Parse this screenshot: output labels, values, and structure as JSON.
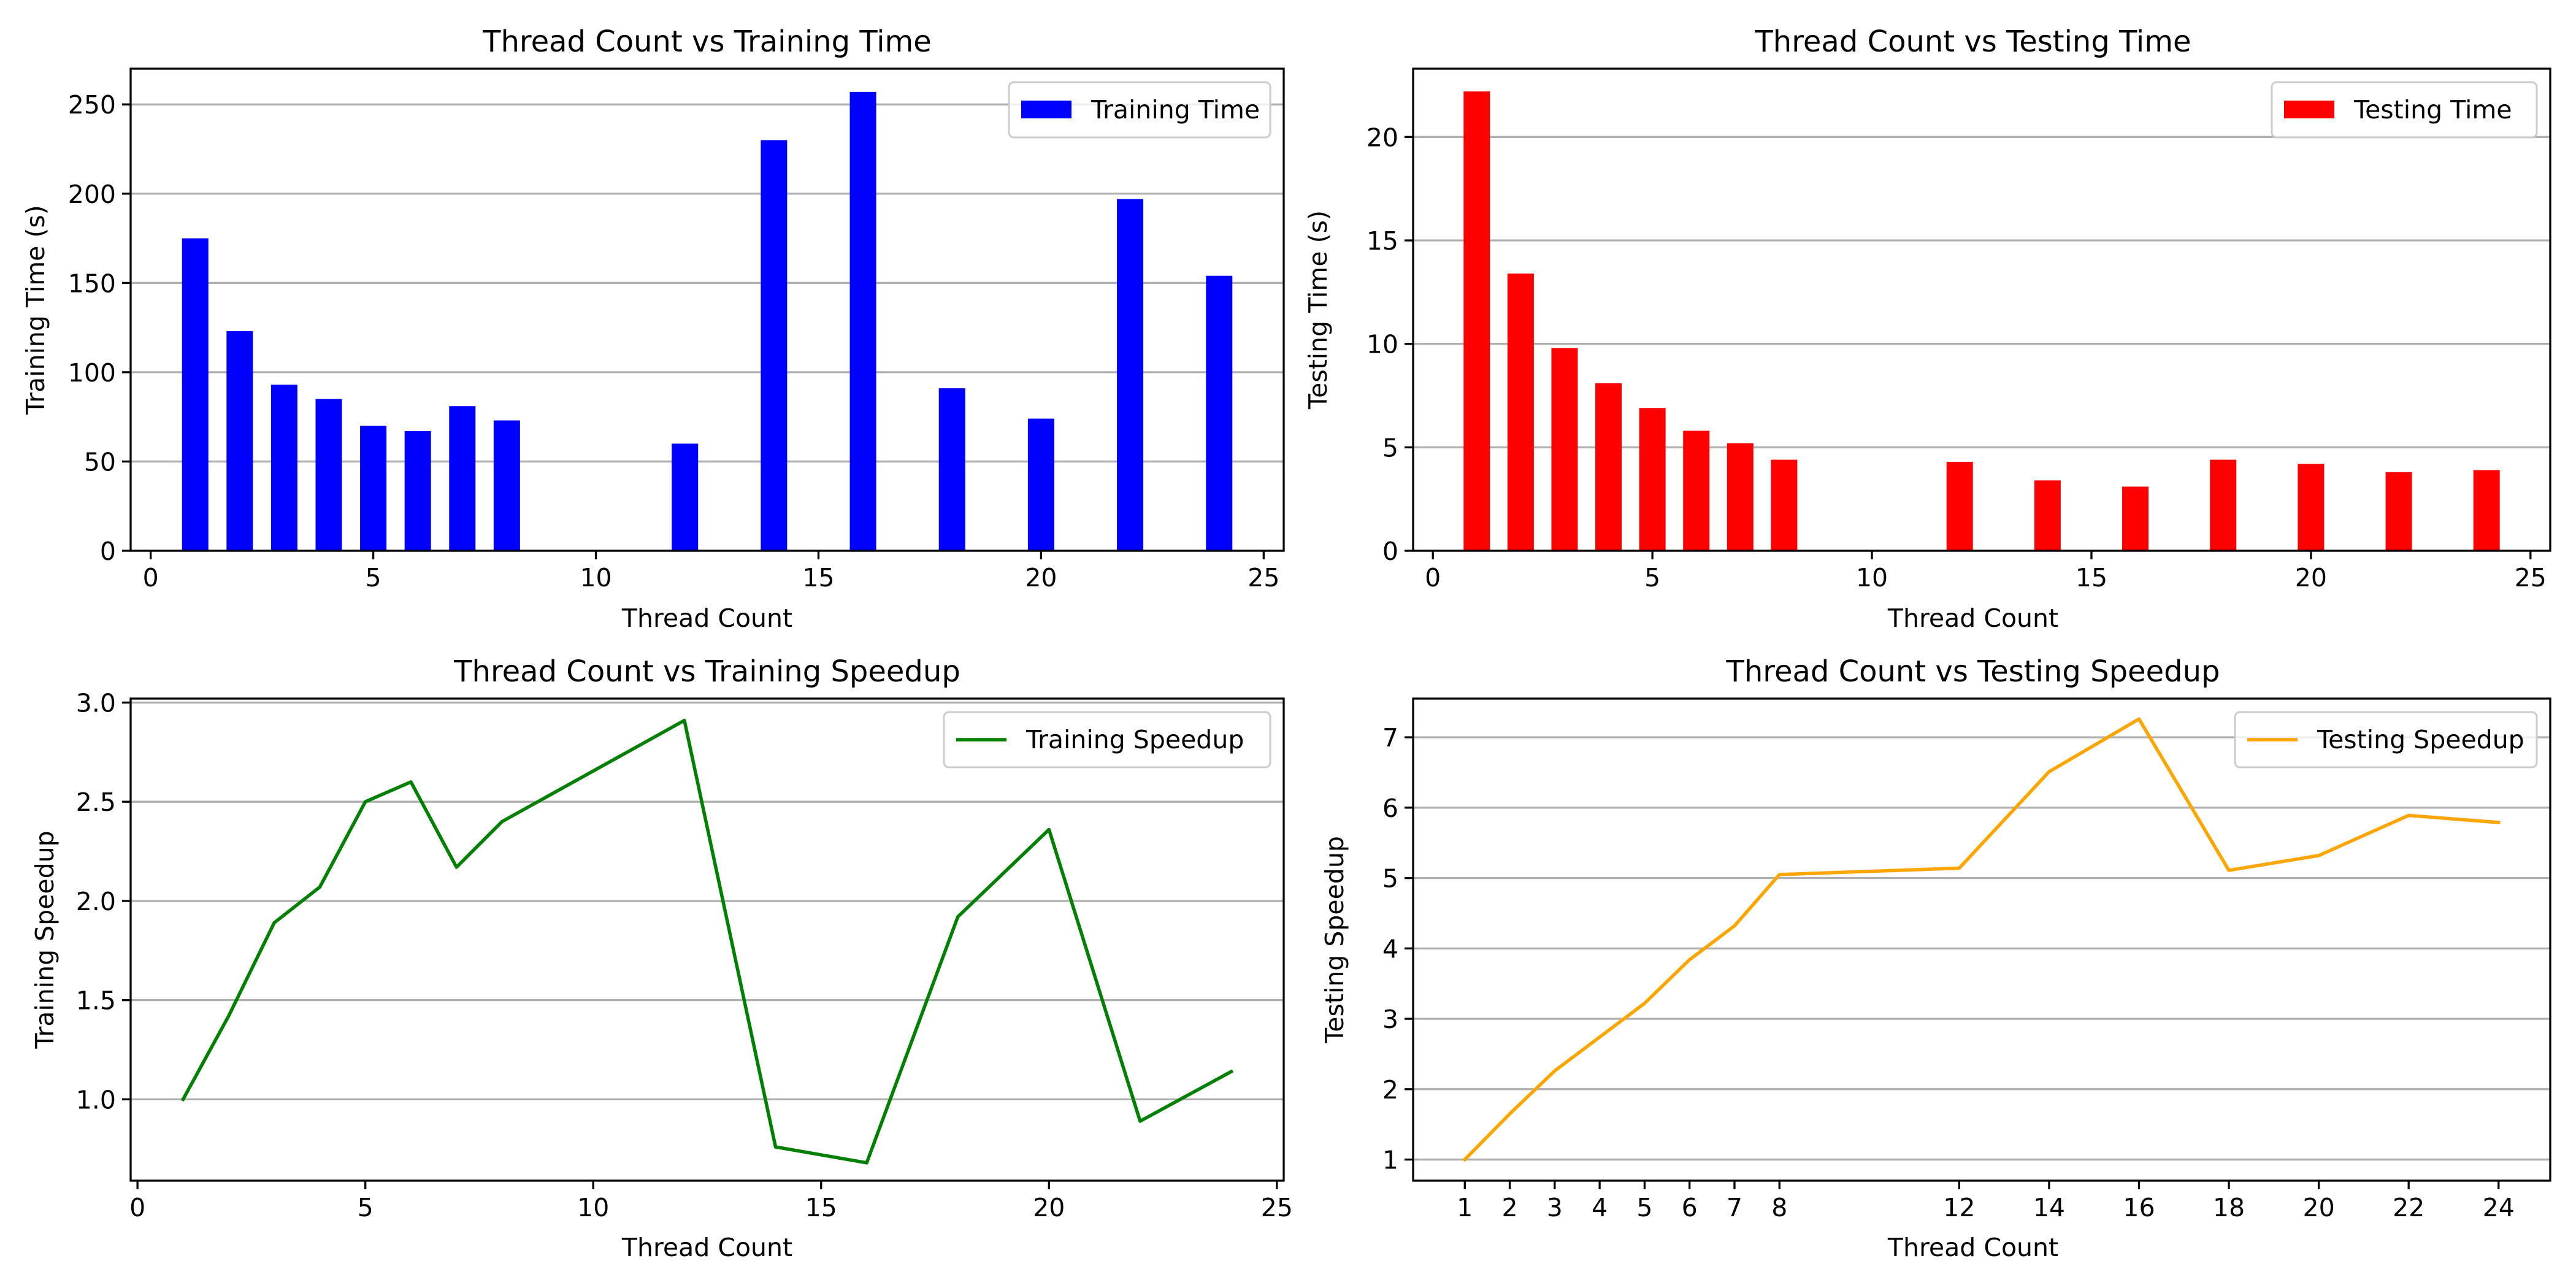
{
  "chart_data": [
    {
      "type": "bar",
      "title": "Thread Count vs Training Time",
      "xlabel": "Thread Count",
      "ylabel": "Training Time (s)",
      "x": [
        1,
        2,
        3,
        4,
        5,
        6,
        7,
        8,
        12,
        14,
        16,
        18,
        20,
        22,
        24
      ],
      "series": [
        {
          "name": "Training Time",
          "color": "#0000ff",
          "values": [
            175,
            123,
            93,
            85,
            70,
            67,
            81,
            73,
            60,
            230,
            257,
            91,
            74,
            197,
            154
          ]
        }
      ],
      "xlim": [
        -0.45,
        25.45
      ],
      "ylim": [
        0,
        270
      ],
      "xticks": [
        0,
        5,
        10,
        15,
        20,
        25
      ],
      "yticks": [
        0,
        50,
        100,
        150,
        200,
        250
      ],
      "grid": "y",
      "legend": "top-right"
    },
    {
      "type": "bar",
      "title": "Thread Count vs Testing Time",
      "xlabel": "Thread Count",
      "ylabel": "Testing Time (s)",
      "x": [
        1,
        2,
        3,
        4,
        5,
        6,
        7,
        8,
        12,
        14,
        16,
        18,
        20,
        22,
        24
      ],
      "series": [
        {
          "name": "Testing Time",
          "color": "#ff0000",
          "values": [
            22.2,
            13.4,
            9.8,
            8.1,
            6.9,
            5.8,
            5.2,
            4.4,
            4.3,
            3.4,
            3.1,
            4.4,
            4.2,
            3.8,
            3.9
          ]
        }
      ],
      "xlim": [
        -0.45,
        25.45
      ],
      "ylim": [
        0,
        23.3
      ],
      "xticks": [
        0,
        5,
        10,
        15,
        20,
        25
      ],
      "yticks": [
        0,
        5,
        10,
        15,
        20
      ],
      "grid": "y",
      "legend": "top-right"
    },
    {
      "type": "line",
      "title": "Thread Count vs Training Speedup",
      "xlabel": "Thread Count",
      "ylabel": "Training Speedup",
      "x": [
        1,
        2,
        3,
        4,
        5,
        6,
        7,
        8,
        12,
        14,
        16,
        18,
        20,
        22,
        24
      ],
      "series": [
        {
          "name": "Training Speedup",
          "color": "#008000",
          "values": [
            1.0,
            1.42,
            1.89,
            2.07,
            2.5,
            2.6,
            2.17,
            2.4,
            2.91,
            0.76,
            0.68,
            1.92,
            2.36,
            0.89,
            1.14
          ]
        }
      ],
      "xlim": [
        -0.15,
        25.15
      ],
      "ylim": [
        0.59,
        3.02
      ],
      "xticks": [
        0,
        5,
        10,
        15,
        20,
        25
      ],
      "yticks": [
        1.0,
        1.5,
        2.0,
        2.5,
        3.0
      ],
      "ytick_labels": [
        "1.0",
        "1.5",
        "2.0",
        "2.5",
        "3.0"
      ],
      "grid": "y",
      "legend": "top-right"
    },
    {
      "type": "line",
      "title": "Thread Count vs Testing Speedup",
      "xlabel": "Thread Count",
      "ylabel": "Testing Speedup",
      "x": [
        1,
        2,
        3,
        4,
        5,
        6,
        7,
        8,
        12,
        14,
        16,
        18,
        20,
        22,
        24
      ],
      "series": [
        {
          "name": "Testing Speedup",
          "color": "#ffa500",
          "values": [
            1.0,
            1.65,
            2.26,
            2.74,
            3.22,
            3.84,
            4.32,
            5.05,
            5.14,
            6.51,
            7.26,
            5.11,
            5.32,
            5.89,
            5.79
          ]
        }
      ],
      "xlim": [
        -0.15,
        25.15
      ],
      "ylim": [
        0.7,
        7.55
      ],
      "xticks": [
        1,
        2,
        3,
        4,
        5,
        6,
        7,
        8,
        12,
        14,
        16,
        18,
        20,
        22,
        24
      ],
      "yticks": [
        1,
        2,
        3,
        4,
        5,
        6,
        7
      ],
      "grid": "y",
      "legend": "top-right"
    }
  ]
}
